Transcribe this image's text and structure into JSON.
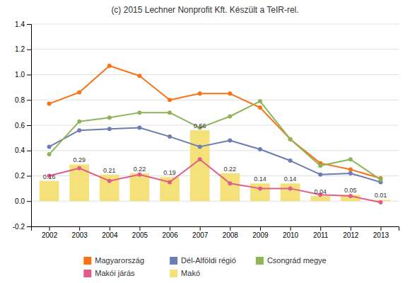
{
  "chart_data": {
    "type": "line",
    "title": "(c) 2015 Lechner Nonprofit Kft. Készült a TeIR-rel.",
    "x": [
      2002,
      2003,
      2004,
      2005,
      2006,
      2007,
      2008,
      2009,
      2010,
      2011,
      2012,
      2013
    ],
    "xlim": [
      2001.4,
      2013.6
    ],
    "xticks": [
      2002,
      2003,
      2004,
      2005,
      2006,
      2007,
      2008,
      2009,
      2010,
      2011,
      2012,
      2013
    ],
    "ylim": [
      -0.2,
      1.4
    ],
    "yticks": [
      -0.2,
      {
        "value": 0,
        "label": "0.0"
      },
      0.2,
      0.4,
      0.6,
      0.8,
      {
        "value": 1,
        "label": "1.0"
      },
      1.2,
      1.4
    ],
    "grid": true,
    "legend": "bottom",
    "series": [
      {
        "name": "Magyarország",
        "type": "line",
        "marker": "circle",
        "color": "#f97316",
        "values": [
          0.77,
          0.86,
          1.07,
          0.99,
          0.8,
          0.85,
          0.85,
          0.74,
          0.49,
          0.3,
          0.25,
          0.18
        ]
      },
      {
        "name": "Dél-Alföldi régió",
        "type": "line",
        "marker": "circle",
        "color": "#6b7db3",
        "values": [
          0.43,
          0.56,
          0.57,
          0.58,
          0.51,
          0.43,
          0.48,
          0.41,
          0.32,
          0.21,
          0.22,
          0.15
        ]
      },
      {
        "name": "Csongrád megye",
        "type": "line",
        "marker": "circle",
        "color": "#8db558",
        "values": [
          0.37,
          0.63,
          0.66,
          0.7,
          0.7,
          0.58,
          0.67,
          0.79,
          0.49,
          0.28,
          0.33,
          0.17
        ]
      },
      {
        "name": "Makói járás",
        "type": "line",
        "marker": "circle",
        "color": "#e05c8a",
        "values": [
          0.2,
          0.26,
          0.16,
          0.21,
          0.15,
          0.33,
          0.14,
          0.1,
          0.1,
          0.05,
          0.04,
          -0.01
        ]
      },
      {
        "name": "Makó",
        "type": "bar",
        "color": "#f5e17a",
        "data_labels": true,
        "values": [
          0.16,
          0.29,
          0.21,
          0.22,
          0.19,
          0.56,
          0.22,
          0.14,
          0.14,
          0.04,
          0.05,
          0.01
        ]
      }
    ]
  }
}
